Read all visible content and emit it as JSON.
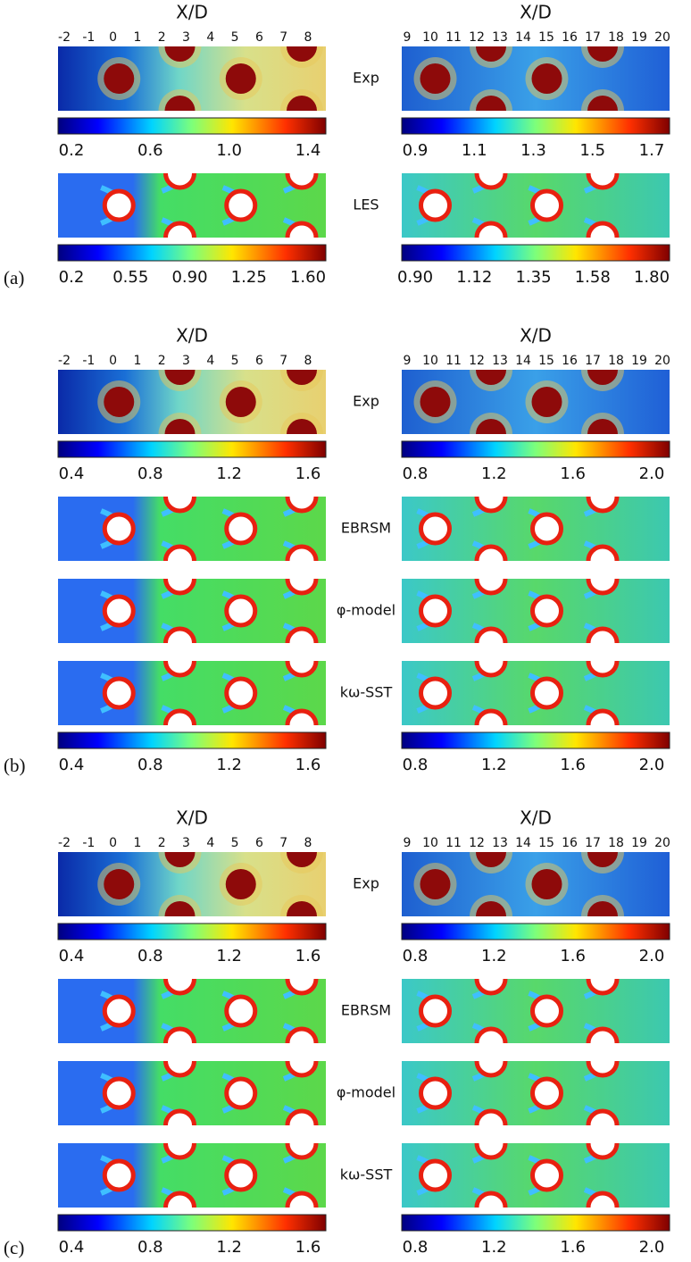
{
  "panels": [
    {
      "label": "(a)",
      "xlabel": "X/D",
      "left_ticks": [
        "-2",
        "-1",
        "0",
        "1",
        "2",
        "3",
        "4",
        "5",
        "6",
        "7",
        "8"
      ],
      "right_ticks": [
        "9",
        "10",
        "11",
        "12",
        "13",
        "14",
        "15",
        "16",
        "17",
        "18",
        "19",
        "20"
      ],
      "groups": [
        {
          "rows": [
            "Exp"
          ],
          "colorbar": {
            "left": [
              "0.2",
              "0.6",
              "1.0",
              "1.4"
            ],
            "right": [
              "0.9",
              "1.1",
              "1.3",
              "1.5",
              "1.7"
            ]
          }
        },
        {
          "rows": [
            "LES"
          ],
          "colorbar": {
            "left": [
              "0.2",
              "0.55",
              "0.90",
              "1.25",
              "1.60"
            ],
            "right": [
              "0.90",
              "1.12",
              "1.35",
              "1.58",
              "1.80"
            ]
          }
        }
      ]
    },
    {
      "label": "(b)",
      "xlabel": "X/D",
      "left_ticks": [
        "-2",
        "-1",
        "0",
        "1",
        "2",
        "3",
        "4",
        "5",
        "6",
        "7",
        "8"
      ],
      "right_ticks": [
        "9",
        "10",
        "11",
        "12",
        "13",
        "14",
        "15",
        "16",
        "17",
        "18",
        "19",
        "20"
      ],
      "groups": [
        {
          "rows": [
            "Exp"
          ],
          "colorbar": {
            "left": [
              "0.4",
              "0.8",
              "1.2",
              "1.6"
            ],
            "right": [
              "0.8",
              "1.2",
              "1.6",
              "2.0"
            ]
          }
        },
        {
          "rows": [
            "EBRSM",
            "φ-model",
            "kω-SST"
          ],
          "colorbar": {
            "left": [
              "0.4",
              "0.8",
              "1.2",
              "1.6"
            ],
            "right": [
              "0.8",
              "1.2",
              "1.6",
              "2.0"
            ]
          }
        }
      ]
    },
    {
      "label": "(c)",
      "xlabel": "X/D",
      "left_ticks": [
        "-2",
        "-1",
        "0",
        "1",
        "2",
        "3",
        "4",
        "5",
        "6",
        "7",
        "8"
      ],
      "right_ticks": [
        "9",
        "10",
        "11",
        "12",
        "13",
        "14",
        "15",
        "16",
        "17",
        "18",
        "19",
        "20"
      ],
      "groups": [
        {
          "rows": [
            "Exp"
          ],
          "colorbar": {
            "left": [
              "0.4",
              "0.8",
              "1.2",
              "1.6"
            ],
            "right": [
              "0.8",
              "1.2",
              "1.6",
              "2.0"
            ]
          }
        },
        {
          "rows": [
            "EBRSM",
            "φ-model",
            "kω-SST"
          ],
          "colorbar": {
            "left": [
              "0.4",
              "0.8",
              "1.2",
              "1.6"
            ],
            "right": [
              "0.8",
              "1.2",
              "1.6",
              "2.0"
            ]
          }
        }
      ]
    }
  ]
}
